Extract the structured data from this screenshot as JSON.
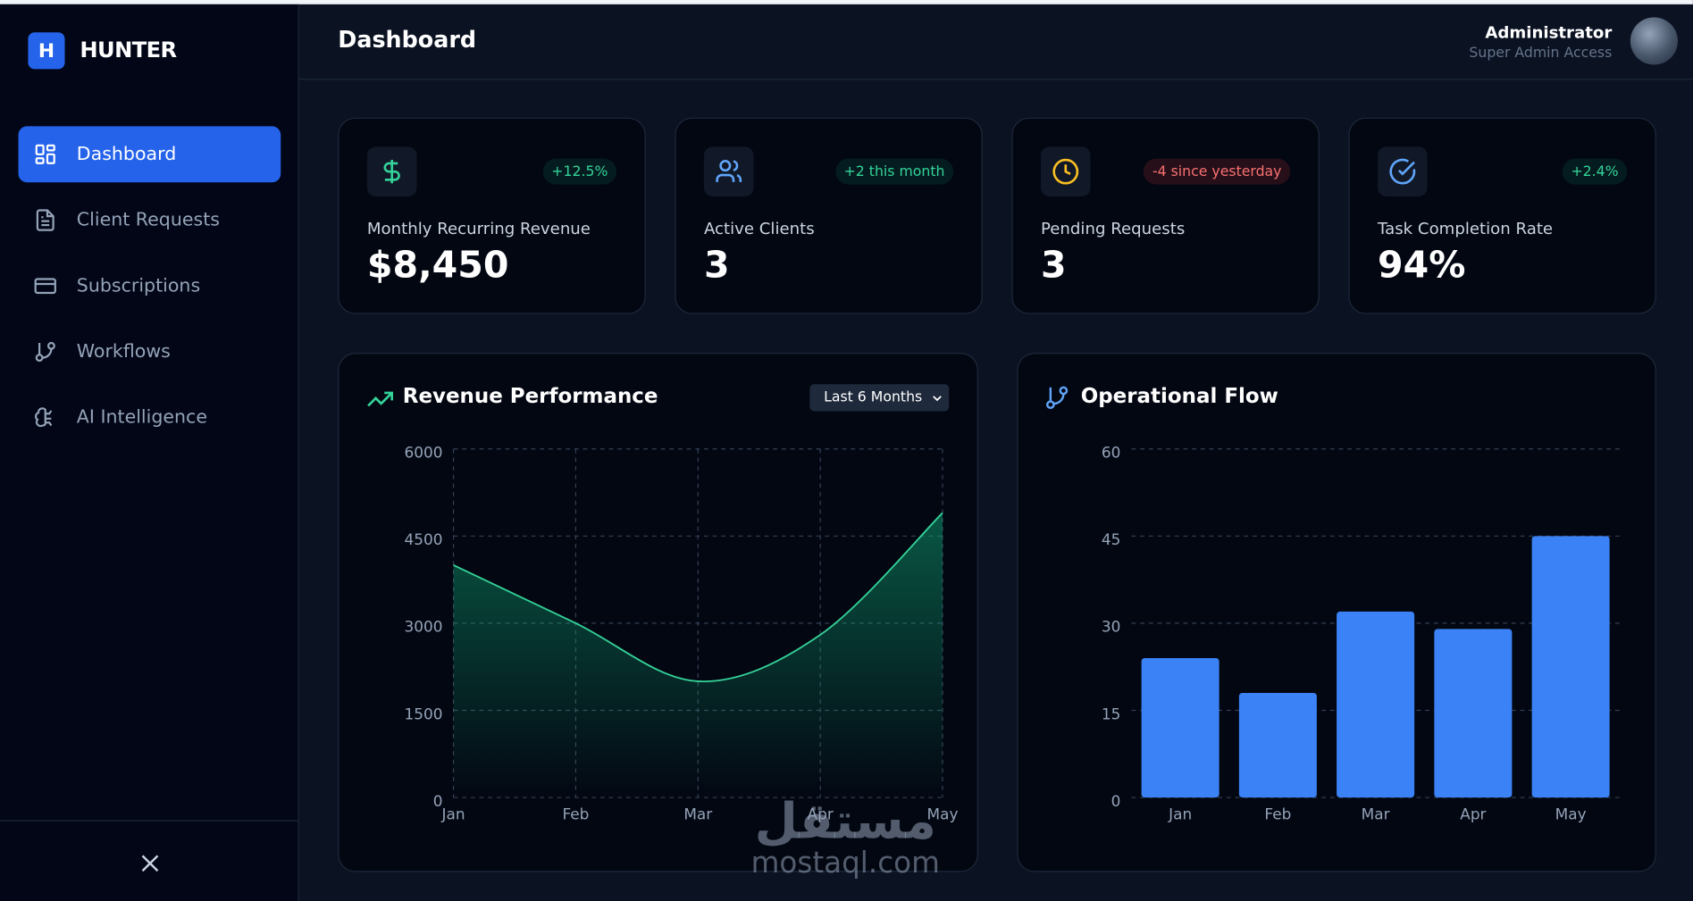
{
  "brand": {
    "logo": "H",
    "name": "HUNTER"
  },
  "nav": [
    "Dashboard",
    "Client Requests",
    "Subscriptions",
    "Workflows",
    "AI Intelligence"
  ],
  "header": {
    "title": "Dashboard",
    "user": "Administrator",
    "role": "Super Admin Access"
  },
  "stats": [
    {
      "label": "Monthly Recurring Revenue",
      "value": "$8,450",
      "badge": "+12.5%"
    },
    {
      "label": "Active Clients",
      "value": 3,
      "badge": "+2 this month"
    },
    {
      "label": "Pending Requests",
      "value": 3,
      "badge": "-4 since yesterday"
    },
    {
      "label": "Task Completion Rate",
      "value": "94%",
      "badge": "+2.4%"
    }
  ],
  "chart_data": [
    {
      "type": "line",
      "title": "Revenue Performance",
      "filter": "Last 6 Months",
      "categories": [
        "Jan",
        "Feb",
        "Mar",
        "Apr",
        "May"
      ],
      "values": [
        4000,
        3000,
        2000,
        2800,
        4900
      ],
      "color": "#34d399",
      "ylim": [
        0,
        6000
      ],
      "yticks": [
        0,
        1500,
        3000,
        4500,
        6000
      ],
      "grid": true
    },
    {
      "type": "bar",
      "title": "Operational Flow",
      "categories": [
        "Jan",
        "Feb",
        "Mar",
        "Apr",
        "May"
      ],
      "values": [
        24,
        18,
        32,
        29,
        45
      ],
      "color": "#3b82f6",
      "ylim": [
        0,
        60
      ],
      "yticks": [
        0,
        15,
        30,
        45,
        60
      ],
      "grid": true
    }
  ],
  "watermark": {
    "arabic": "مستقل",
    "latin": "mostaql.com"
  }
}
